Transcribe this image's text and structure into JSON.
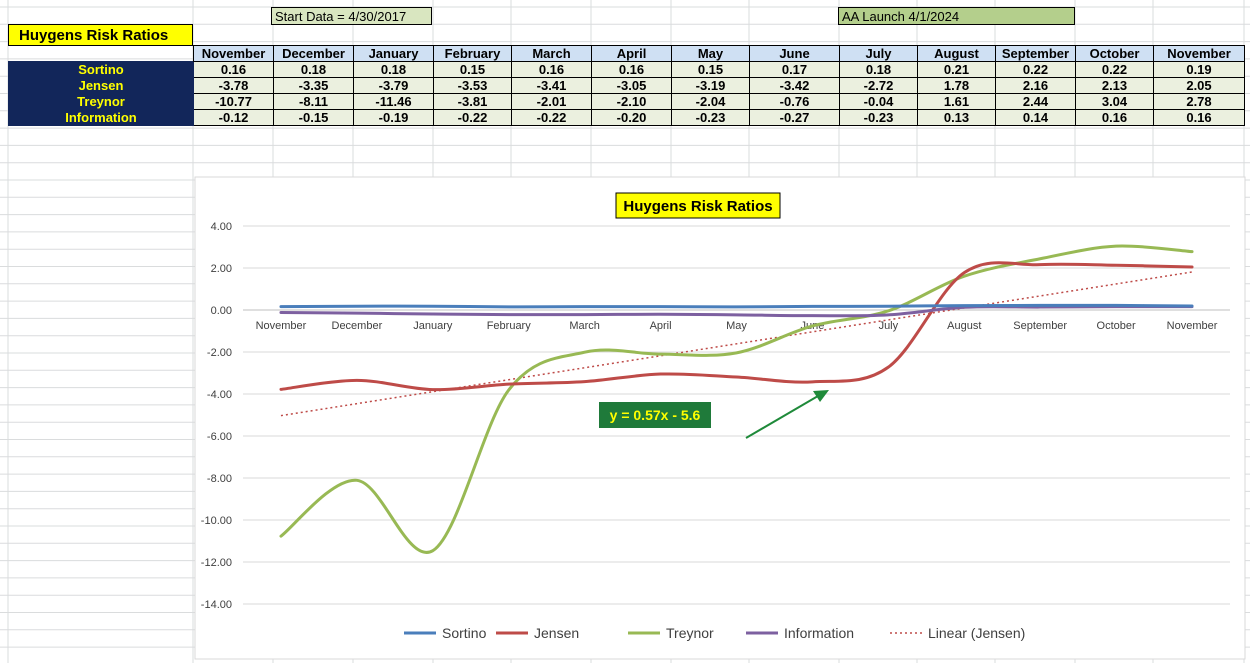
{
  "sheet": {
    "start_label": "Start Data = 4/30/2017",
    "aa_label": "AA Launch 4/1/2024",
    "title": "Huygens Risk Ratios"
  },
  "table": {
    "months": [
      "November",
      "December",
      "January",
      "February",
      "March",
      "April",
      "May",
      "June",
      "July",
      "August",
      "September",
      "October",
      "November"
    ],
    "rows": [
      {
        "name": "Sortino",
        "values": [
          "0.16",
          "0.18",
          "0.18",
          "0.15",
          "0.16",
          "0.16",
          "0.15",
          "0.17",
          "0.18",
          "0.21",
          "0.22",
          "0.22",
          "0.19"
        ]
      },
      {
        "name": "Jensen",
        "values": [
          "-3.78",
          "-3.35",
          "-3.79",
          "-3.53",
          "-3.41",
          "-3.05",
          "-3.19",
          "-3.42",
          "-2.72",
          "1.78",
          "2.16",
          "2.13",
          "2.05"
        ]
      },
      {
        "name": "Treynor",
        "values": [
          "-10.77",
          "-8.11",
          "-11.46",
          "-3.81",
          "-2.01",
          "-2.10",
          "-2.04",
          "-0.76",
          "-0.04",
          "1.61",
          "2.44",
          "3.04",
          "2.78"
        ]
      },
      {
        "name": "Information",
        "values": [
          "-0.12",
          "-0.15",
          "-0.19",
          "-0.22",
          "-0.22",
          "-0.20",
          "-0.23",
          "-0.27",
          "-0.23",
          "0.13",
          "0.14",
          "0.16",
          "0.16"
        ]
      }
    ]
  },
  "chart_data": {
    "type": "line",
    "title": "Huygens Risk Ratios",
    "categories": [
      "November",
      "December",
      "January",
      "February",
      "March",
      "April",
      "May",
      "June",
      "July",
      "August",
      "September",
      "October",
      "November"
    ],
    "series": [
      {
        "name": "Sortino",
        "color": "#4a7ebb",
        "values": [
          0.16,
          0.18,
          0.18,
          0.15,
          0.16,
          0.16,
          0.15,
          0.17,
          0.18,
          0.21,
          0.22,
          0.22,
          0.19
        ]
      },
      {
        "name": "Jensen",
        "color": "#be4b48",
        "values": [
          -3.78,
          -3.35,
          -3.79,
          -3.53,
          -3.41,
          -3.05,
          -3.19,
          -3.42,
          -2.72,
          1.78,
          2.16,
          2.13,
          2.05
        ]
      },
      {
        "name": "Treynor",
        "color": "#98b954",
        "values": [
          -10.77,
          -8.11,
          -11.46,
          -3.81,
          -2.01,
          -2.1,
          -2.04,
          -0.76,
          -0.04,
          1.61,
          2.44,
          3.04,
          2.78
        ]
      },
      {
        "name": "Information",
        "color": "#7d60a0",
        "values": [
          -0.12,
          -0.15,
          -0.19,
          -0.22,
          -0.22,
          -0.2,
          -0.23,
          -0.27,
          -0.23,
          0.13,
          0.14,
          0.16,
          0.16
        ]
      }
    ],
    "trendline": {
      "name": "Linear (Jensen)",
      "color": "#be4b48",
      "slope": 0.57,
      "intercept": -5.6,
      "equation": "y = 0.57x - 5.6"
    },
    "yticks": [
      "4.00",
      "2.00",
      "0.00",
      "-2.00",
      "-4.00",
      "-6.00",
      "-8.00",
      "-10.00",
      "-12.00",
      "-14.00"
    ],
    "ylim": [
      -14,
      4
    ],
    "grid": true,
    "legend_position": "bottom",
    "annotation_colors": {
      "label_bg": "#1f7a3a",
      "label_text": "#ffff00",
      "arrow": "#1f8a3a"
    }
  }
}
